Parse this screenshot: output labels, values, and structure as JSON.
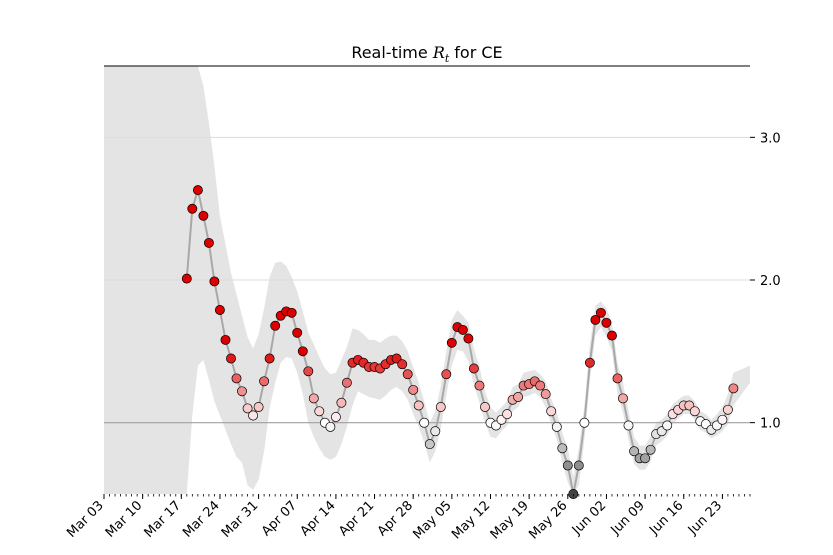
{
  "chart_data": {
    "type": "line",
    "title": "Real-time",
    "title_symbol": "R",
    "title_subscript": "t",
    "title_suffix": "for CE",
    "xlabel": "",
    "ylabel": "",
    "x_start": "2020-03-03",
    "x_end": "2020-06-28",
    "ylim": [
      0.5,
      3.5
    ],
    "x_tick_labels": [
      "Mar 03",
      "Mar 10",
      "Mar 17",
      "Mar 24",
      "Mar 31",
      "Apr 07",
      "Apr 14",
      "Apr 21",
      "Apr 28",
      "May 05",
      "May 12",
      "May 19",
      "May 26",
      "Jun 02",
      "Jun 09",
      "Jun 16",
      "Jun 23"
    ],
    "x_tick_dates": [
      "2020-03-03",
      "2020-03-10",
      "2020-03-17",
      "2020-03-24",
      "2020-03-31",
      "2020-04-07",
      "2020-04-14",
      "2020-04-21",
      "2020-04-28",
      "2020-05-05",
      "2020-05-12",
      "2020-05-19",
      "2020-05-26",
      "2020-06-02",
      "2020-06-09",
      "2020-06-16",
      "2020-06-23"
    ],
    "y_ticks": [
      1.0,
      2.0,
      3.0
    ],
    "y_tick_labels": [
      "1.0",
      "2.0",
      "3.0"
    ],
    "reference_line": 1.0,
    "grid": "horizontal",
    "y_axis_side": "right",
    "colors": {
      "high": "#dd0000",
      "neutral": "#ffffff",
      "low": "#444444",
      "band": "#e4e4e4",
      "line": "#a8a8a8",
      "reference": "#a0a0a0",
      "grid": "#dddddd"
    },
    "series": [
      {
        "points": [
          [
            "2020-03-18",
            2.01
          ],
          [
            "2020-03-19",
            2.5
          ],
          [
            "2020-03-20",
            2.63
          ],
          [
            "2020-03-21",
            2.45
          ],
          [
            "2020-03-22",
            2.26
          ],
          [
            "2020-03-23",
            1.99
          ],
          [
            "2020-03-24",
            1.79
          ],
          [
            "2020-03-25",
            1.58
          ],
          [
            "2020-03-26",
            1.45
          ],
          [
            "2020-03-27",
            1.31
          ],
          [
            "2020-03-28",
            1.22
          ],
          [
            "2020-03-29",
            1.1
          ],
          [
            "2020-03-30",
            1.05
          ],
          [
            "2020-03-31",
            1.11
          ],
          [
            "2020-04-01",
            1.29
          ],
          [
            "2020-04-02",
            1.45
          ],
          [
            "2020-04-03",
            1.68
          ],
          [
            "2020-04-04",
            1.75
          ],
          [
            "2020-04-05",
            1.78
          ],
          [
            "2020-04-06",
            1.77
          ],
          [
            "2020-04-07",
            1.63
          ],
          [
            "2020-04-08",
            1.5
          ],
          [
            "2020-04-09",
            1.36
          ],
          [
            "2020-04-10",
            1.17
          ],
          [
            "2020-04-11",
            1.08
          ],
          [
            "2020-04-12",
            1.0
          ],
          [
            "2020-04-13",
            0.97
          ],
          [
            "2020-04-14",
            1.04
          ],
          [
            "2020-04-15",
            1.14
          ],
          [
            "2020-04-16",
            1.28
          ],
          [
            "2020-04-17",
            1.42
          ],
          [
            "2020-04-18",
            1.44
          ],
          [
            "2020-04-19",
            1.42
          ],
          [
            "2020-04-20",
            1.39
          ],
          [
            "2020-04-21",
            1.39
          ],
          [
            "2020-04-22",
            1.38
          ],
          [
            "2020-04-23",
            1.41
          ],
          [
            "2020-04-24",
            1.44
          ],
          [
            "2020-04-25",
            1.45
          ],
          [
            "2020-04-26",
            1.41
          ],
          [
            "2020-04-27",
            1.34
          ],
          [
            "2020-04-28",
            1.23
          ],
          [
            "2020-04-29",
            1.12
          ],
          [
            "2020-04-30",
            1.0
          ],
          [
            "2020-05-01",
            0.85
          ],
          [
            "2020-05-02",
            0.94
          ],
          [
            "2020-05-03",
            1.11
          ],
          [
            "2020-05-04",
            1.34
          ],
          [
            "2020-05-05",
            1.56
          ],
          [
            "2020-05-06",
            1.67
          ],
          [
            "2020-05-07",
            1.65
          ],
          [
            "2020-05-08",
            1.59
          ],
          [
            "2020-05-09",
            1.38
          ],
          [
            "2020-05-10",
            1.26
          ],
          [
            "2020-05-11",
            1.11
          ],
          [
            "2020-05-12",
            1.0
          ],
          [
            "2020-05-13",
            0.98
          ],
          [
            "2020-05-14",
            1.02
          ],
          [
            "2020-05-15",
            1.06
          ],
          [
            "2020-05-16",
            1.16
          ],
          [
            "2020-05-17",
            1.18
          ],
          [
            "2020-05-18",
            1.26
          ],
          [
            "2020-05-19",
            1.27
          ],
          [
            "2020-05-20",
            1.29
          ],
          [
            "2020-05-21",
            1.26
          ],
          [
            "2020-05-22",
            1.2
          ],
          [
            "2020-05-23",
            1.08
          ],
          [
            "2020-05-24",
            0.97
          ],
          [
            "2020-05-25",
            0.82
          ],
          [
            "2020-05-26",
            0.7
          ],
          [
            "2020-05-27",
            0.5
          ],
          [
            "2020-05-28",
            0.7
          ],
          [
            "2020-05-29",
            1.0
          ],
          [
            "2020-05-30",
            1.42
          ],
          [
            "2020-05-31",
            1.72
          ],
          [
            "2020-06-01",
            1.77
          ],
          [
            "2020-06-02",
            1.7
          ],
          [
            "2020-06-03",
            1.61
          ],
          [
            "2020-06-04",
            1.31
          ],
          [
            "2020-06-05",
            1.17
          ],
          [
            "2020-06-06",
            0.98
          ],
          [
            "2020-06-07",
            0.8
          ],
          [
            "2020-06-08",
            0.75
          ],
          [
            "2020-06-09",
            0.75
          ],
          [
            "2020-06-10",
            0.81
          ],
          [
            "2020-06-11",
            0.92
          ],
          [
            "2020-06-12",
            0.94
          ],
          [
            "2020-06-13",
            0.98
          ],
          [
            "2020-06-14",
            1.06
          ],
          [
            "2020-06-15",
            1.09
          ],
          [
            "2020-06-16",
            1.12
          ],
          [
            "2020-06-17",
            1.12
          ],
          [
            "2020-06-18",
            1.08
          ],
          [
            "2020-06-19",
            1.01
          ],
          [
            "2020-06-20",
            0.99
          ],
          [
            "2020-06-21",
            0.95
          ],
          [
            "2020-06-22",
            0.98
          ],
          [
            "2020-06-23",
            1.02
          ],
          [
            "2020-06-24",
            1.09
          ],
          [
            "2020-06-25",
            1.24
          ]
        ]
      }
    ],
    "interval": [
      [
        "2020-03-03",
        0.5,
        3.5
      ],
      [
        "2020-03-17",
        0.5,
        3.5
      ],
      [
        "2020-03-18",
        0.5,
        3.5
      ],
      [
        "2020-03-19",
        1.05,
        3.5
      ],
      [
        "2020-03-20",
        1.4,
        3.5
      ],
      [
        "2020-03-21",
        1.44,
        3.36
      ],
      [
        "2020-03-22",
        1.3,
        3.1
      ],
      [
        "2020-03-23",
        1.15,
        2.8
      ],
      [
        "2020-03-24",
        1.05,
        2.45
      ],
      [
        "2020-03-25",
        0.95,
        2.25
      ],
      [
        "2020-03-26",
        0.85,
        2.05
      ],
      [
        "2020-03-27",
        0.76,
        1.9
      ],
      [
        "2020-03-28",
        0.72,
        1.75
      ],
      [
        "2020-03-29",
        0.56,
        1.6
      ],
      [
        "2020-03-30",
        0.53,
        1.52
      ],
      [
        "2020-03-31",
        0.6,
        1.62
      ],
      [
        "2020-04-01",
        0.8,
        1.8
      ],
      [
        "2020-04-02",
        1.1,
        2.02
      ],
      [
        "2020-04-03",
        1.28,
        2.12
      ],
      [
        "2020-04-04",
        1.42,
        2.13
      ],
      [
        "2020-04-05",
        1.46,
        2.1
      ],
      [
        "2020-04-06",
        1.45,
        2.02
      ],
      [
        "2020-04-07",
        1.35,
        1.92
      ],
      [
        "2020-04-08",
        1.2,
        1.78
      ],
      [
        "2020-04-09",
        1.0,
        1.63
      ],
      [
        "2020-04-10",
        0.9,
        1.55
      ],
      [
        "2020-04-11",
        0.82,
        1.46
      ],
      [
        "2020-04-12",
        0.76,
        1.38
      ],
      [
        "2020-04-13",
        0.74,
        1.34
      ],
      [
        "2020-04-14",
        0.76,
        1.35
      ],
      [
        "2020-04-15",
        0.85,
        1.44
      ],
      [
        "2020-04-16",
        0.97,
        1.53
      ],
      [
        "2020-04-17",
        1.12,
        1.66
      ],
      [
        "2020-04-18",
        1.22,
        1.65
      ],
      [
        "2020-04-19",
        1.2,
        1.62
      ],
      [
        "2020-04-20",
        1.18,
        1.58
      ],
      [
        "2020-04-21",
        1.17,
        1.58
      ],
      [
        "2020-04-22",
        1.16,
        1.56
      ],
      [
        "2020-04-23",
        1.19,
        1.59
      ],
      [
        "2020-04-24",
        1.23,
        1.61
      ],
      [
        "2020-04-25",
        1.25,
        1.61
      ],
      [
        "2020-04-26",
        1.22,
        1.57
      ],
      [
        "2020-04-27",
        1.16,
        1.5
      ],
      [
        "2020-04-28",
        1.06,
        1.39
      ],
      [
        "2020-04-29",
        0.97,
        1.28
      ],
      [
        "2020-04-30",
        0.86,
        1.15
      ],
      [
        "2020-05-01",
        0.72,
        1.0
      ],
      [
        "2020-05-02",
        0.8,
        1.08
      ],
      [
        "2020-05-03",
        0.96,
        1.26
      ],
      [
        "2020-05-04",
        1.19,
        1.5
      ],
      [
        "2020-05-05",
        1.4,
        1.72
      ],
      [
        "2020-05-06",
        1.51,
        1.79
      ],
      [
        "2020-05-07",
        1.5,
        1.75
      ],
      [
        "2020-05-08",
        1.43,
        1.7
      ],
      [
        "2020-05-09",
        1.26,
        1.52
      ],
      [
        "2020-05-10",
        1.14,
        1.39
      ],
      [
        "2020-05-11",
        1.0,
        1.22
      ],
      [
        "2020-05-12",
        0.9,
        1.11
      ],
      [
        "2020-05-13",
        0.89,
        1.07
      ],
      [
        "2020-05-14",
        0.94,
        1.11
      ],
      [
        "2020-05-15",
        0.98,
        1.15
      ],
      [
        "2020-05-16",
        1.08,
        1.25
      ],
      [
        "2020-05-17",
        1.11,
        1.27
      ],
      [
        "2020-05-18",
        1.18,
        1.35
      ],
      [
        "2020-05-19",
        1.19,
        1.36
      ],
      [
        "2020-05-20",
        1.21,
        1.37
      ],
      [
        "2020-05-21",
        1.18,
        1.34
      ],
      [
        "2020-05-22",
        1.11,
        1.29
      ],
      [
        "2020-05-23",
        0.99,
        1.17
      ],
      [
        "2020-05-24",
        0.88,
        1.07
      ],
      [
        "2020-05-25",
        0.72,
        0.93
      ],
      [
        "2020-05-26",
        0.58,
        0.82
      ],
      [
        "2020-05-27",
        0.5,
        0.62
      ],
      [
        "2020-05-28",
        0.56,
        0.82
      ],
      [
        "2020-05-29",
        0.88,
        1.12
      ],
      [
        "2020-05-30",
        1.3,
        1.55
      ],
      [
        "2020-05-31",
        1.61,
        1.82
      ],
      [
        "2020-06-01",
        1.67,
        1.85
      ],
      [
        "2020-06-02",
        1.6,
        1.8
      ],
      [
        "2020-06-03",
        1.5,
        1.7
      ],
      [
        "2020-06-04",
        1.2,
        1.42
      ],
      [
        "2020-06-05",
        1.07,
        1.28
      ],
      [
        "2020-06-06",
        0.88,
        1.08
      ],
      [
        "2020-06-07",
        0.71,
        0.9
      ],
      [
        "2020-06-08",
        0.67,
        0.84
      ],
      [
        "2020-06-09",
        0.67,
        0.84
      ],
      [
        "2020-06-10",
        0.73,
        0.9
      ],
      [
        "2020-06-11",
        0.84,
        1.0
      ],
      [
        "2020-06-12",
        0.87,
        1.02
      ],
      [
        "2020-06-13",
        0.91,
        1.06
      ],
      [
        "2020-06-14",
        0.99,
        1.13
      ],
      [
        "2020-06-15",
        1.03,
        1.16
      ],
      [
        "2020-06-16",
        1.06,
        1.19
      ],
      [
        "2020-06-17",
        1.06,
        1.19
      ],
      [
        "2020-06-18",
        1.02,
        1.15
      ],
      [
        "2020-06-19",
        0.95,
        1.08
      ],
      [
        "2020-06-20",
        0.93,
        1.06
      ],
      [
        "2020-06-21",
        0.89,
        1.02
      ],
      [
        "2020-06-22",
        0.91,
        1.06
      ],
      [
        "2020-06-23",
        0.94,
        1.11
      ],
      [
        "2020-06-24",
        0.99,
        1.2
      ],
      [
        "2020-06-25",
        1.12,
        1.35
      ],
      [
        "2020-06-28",
        1.28,
        1.4
      ]
    ]
  }
}
